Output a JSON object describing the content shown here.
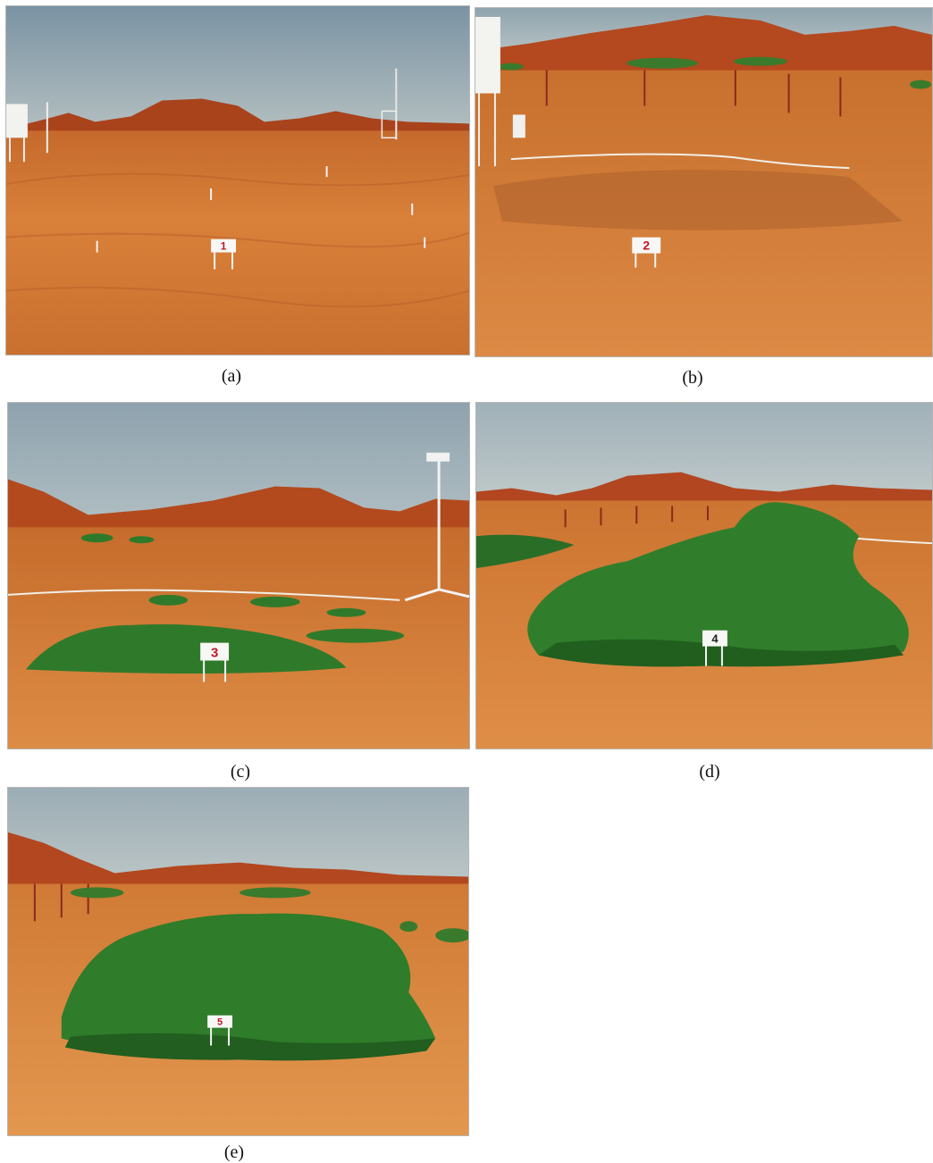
{
  "colors": {
    "sky_top": "#7f97a6",
    "sky_bottom": "#a9bac0",
    "soil": "#d3782f",
    "soil_light": "#e49a55",
    "soil_dark": "#a9501c",
    "hill": "#b0431b",
    "grass": "#2f7d2a",
    "grass_dark": "#1f5a1c",
    "sign_text": "#c0182a"
  },
  "panels": [
    {
      "id": "a",
      "caption": "(a)",
      "plot_number": "1",
      "grass_cover": 0.0
    },
    {
      "id": "b",
      "caption": "(b)",
      "plot_number": "2",
      "grass_cover": 0.02
    },
    {
      "id": "c",
      "caption": "(c)",
      "plot_number": "3",
      "grass_cover": 0.25
    },
    {
      "id": "d",
      "caption": "(d)",
      "plot_number": "4",
      "grass_cover": 0.8
    },
    {
      "id": "e",
      "caption": "(e)",
      "plot_number": "5",
      "grass_cover": 0.9
    }
  ]
}
